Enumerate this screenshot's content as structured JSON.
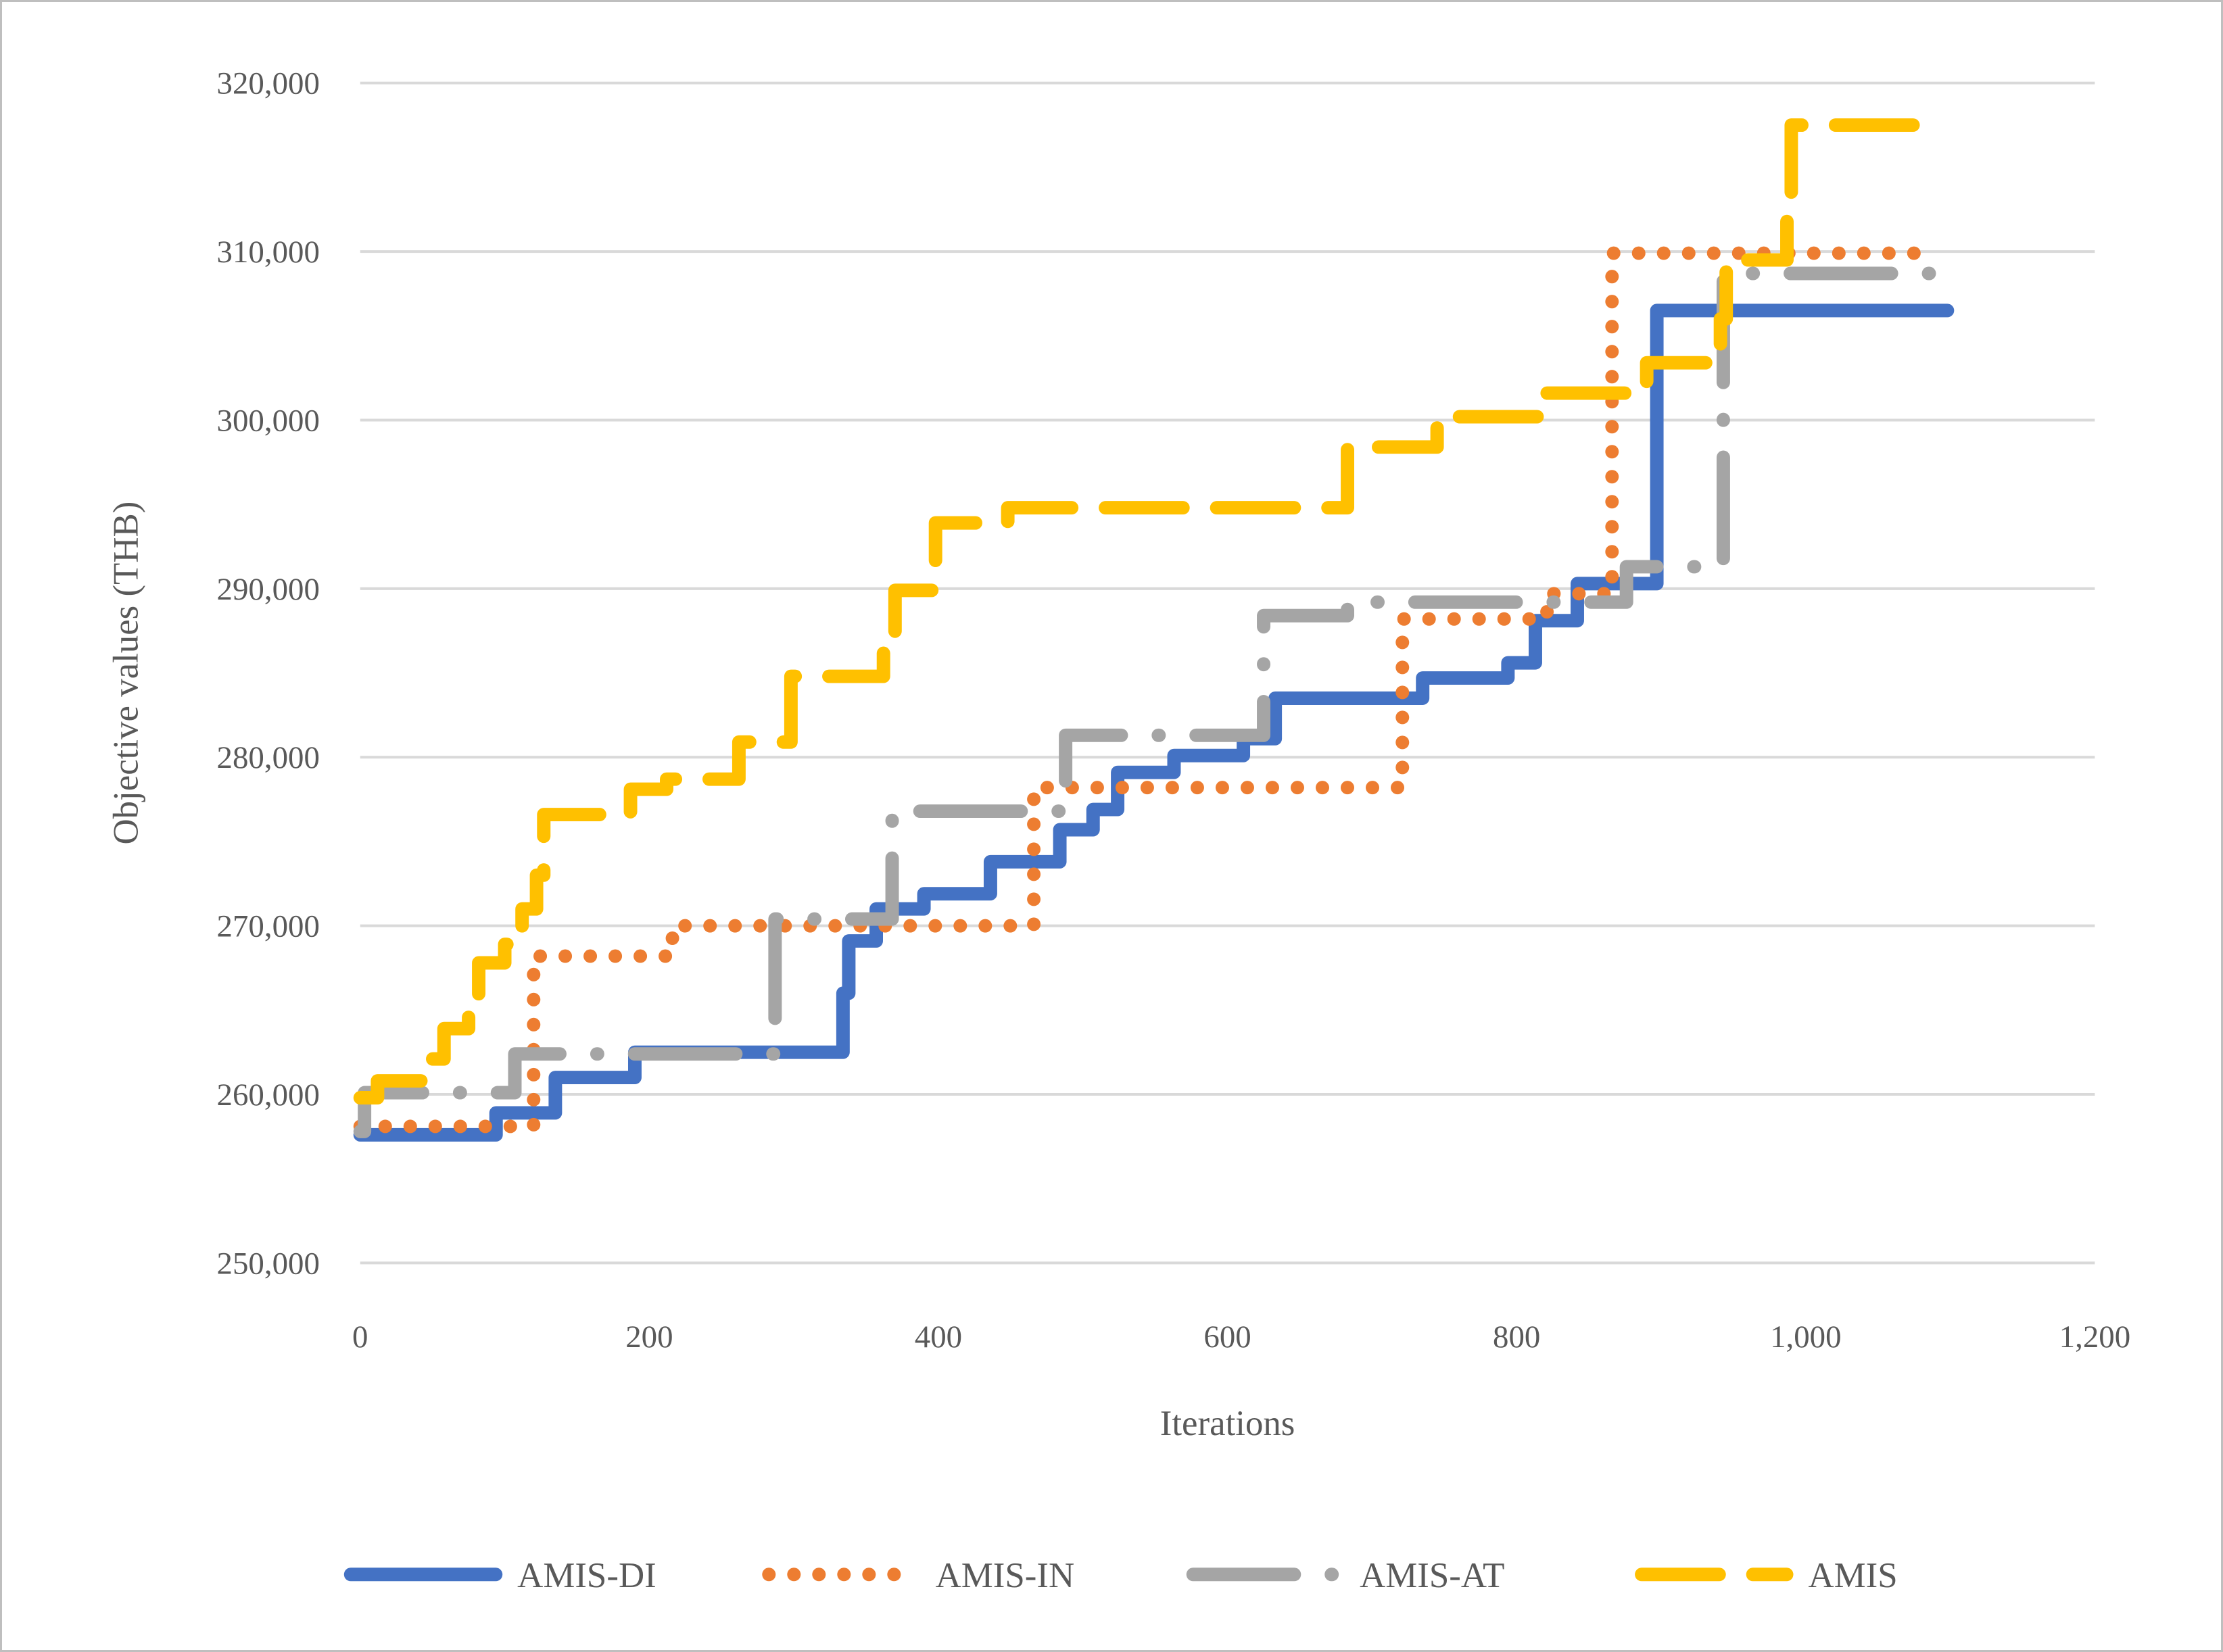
{
  "chart_data": {
    "type": "line",
    "title": "",
    "xlabel": "Iterations",
    "ylabel": "Objective values (THB)",
    "xlim": [
      0,
      1200
    ],
    "ylim": [
      250000,
      320000
    ],
    "grid": "horizontal-only",
    "legend_position": "bottom-center",
    "x_ticks": [
      {
        "value": 0,
        "label": "0"
      },
      {
        "value": 200,
        "label": "200"
      },
      {
        "value": 400,
        "label": "400"
      },
      {
        "value": 600,
        "label": "600"
      },
      {
        "value": 800,
        "label": "800"
      },
      {
        "value": 1000,
        "label": "1,000"
      },
      {
        "value": 1200,
        "label": "1,200"
      }
    ],
    "y_ticks": [
      {
        "value": 250000,
        "label": "250,000"
      },
      {
        "value": 260000,
        "label": "260,000"
      },
      {
        "value": 270000,
        "label": "270,000"
      },
      {
        "value": 280000,
        "label": "280,000"
      },
      {
        "value": 290000,
        "label": "290,000"
      },
      {
        "value": 300000,
        "label": "300,000"
      },
      {
        "value": 310000,
        "label": "310,000"
      },
      {
        "value": 320000,
        "label": "320,000"
      }
    ],
    "series": [
      {
        "name": "AMIS-DI",
        "color": "#4472C4",
        "dash": "solid",
        "end_x": 1098,
        "steps": [
          [
            0,
            257600
          ],
          [
            94,
            258900
          ],
          [
            135,
            261000
          ],
          [
            190,
            262500
          ],
          [
            334,
            266000
          ],
          [
            338,
            269100
          ],
          [
            357,
            271000
          ],
          [
            390,
            271900
          ],
          [
            436,
            273800
          ],
          [
            484,
            275700
          ],
          [
            507,
            276900
          ],
          [
            524,
            279100
          ],
          [
            563,
            280100
          ],
          [
            611,
            281100
          ],
          [
            633,
            283500
          ],
          [
            735,
            284700
          ],
          [
            794,
            285600
          ],
          [
            813,
            288100
          ],
          [
            842,
            290300
          ],
          [
            897,
            306500
          ]
        ]
      },
      {
        "name": "AMIS-IN",
        "color": "#ED7D31",
        "dash": "dot",
        "end_x": 1088,
        "steps": [
          [
            0,
            258100
          ],
          [
            120,
            268200
          ],
          [
            216,
            270000
          ],
          [
            466,
            278200
          ],
          [
            721,
            288200
          ],
          [
            821,
            289700
          ],
          [
            866,
            309900
          ]
        ]
      },
      {
        "name": "AMIS-AT",
        "color": "#A5A5A5",
        "dash": "long-dash-dot",
        "end_x": 1100,
        "steps": [
          [
            0,
            257800
          ],
          [
            3,
            260100
          ],
          [
            107,
            262400
          ],
          [
            287,
            270400
          ],
          [
            368,
            276800
          ],
          [
            488,
            281300
          ],
          [
            625,
            288400
          ],
          [
            683,
            289200
          ],
          [
            876,
            291300
          ],
          [
            943,
            308700
          ]
        ]
      },
      {
        "name": "AMIS",
        "color": "#FFC000",
        "dash": "long-dash",
        "end_x": 1085,
        "steps": [
          [
            0,
            259800
          ],
          [
            12,
            260800
          ],
          [
            50,
            262100
          ],
          [
            58,
            263900
          ],
          [
            75,
            265400
          ],
          [
            82,
            267800
          ],
          [
            100,
            268900
          ],
          [
            112,
            271000
          ],
          [
            122,
            273000
          ],
          [
            127,
            276600
          ],
          [
            187,
            278100
          ],
          [
            212,
            278700
          ],
          [
            262,
            280900
          ],
          [
            298,
            284800
          ],
          [
            362,
            287000
          ],
          [
            370,
            289900
          ],
          [
            398,
            293900
          ],
          [
            448,
            294800
          ],
          [
            683,
            298400
          ],
          [
            745,
            300200
          ],
          [
            820,
            301600
          ],
          [
            890,
            303400
          ],
          [
            941,
            306000
          ],
          [
            945,
            309500
          ],
          [
            987,
            313200
          ],
          [
            990,
            317500
          ]
        ]
      }
    ]
  },
  "colors": {
    "grid": "#D9D9D9",
    "text": "#595959",
    "border": "#BFBFBF",
    "background": "#FFFFFF"
  }
}
